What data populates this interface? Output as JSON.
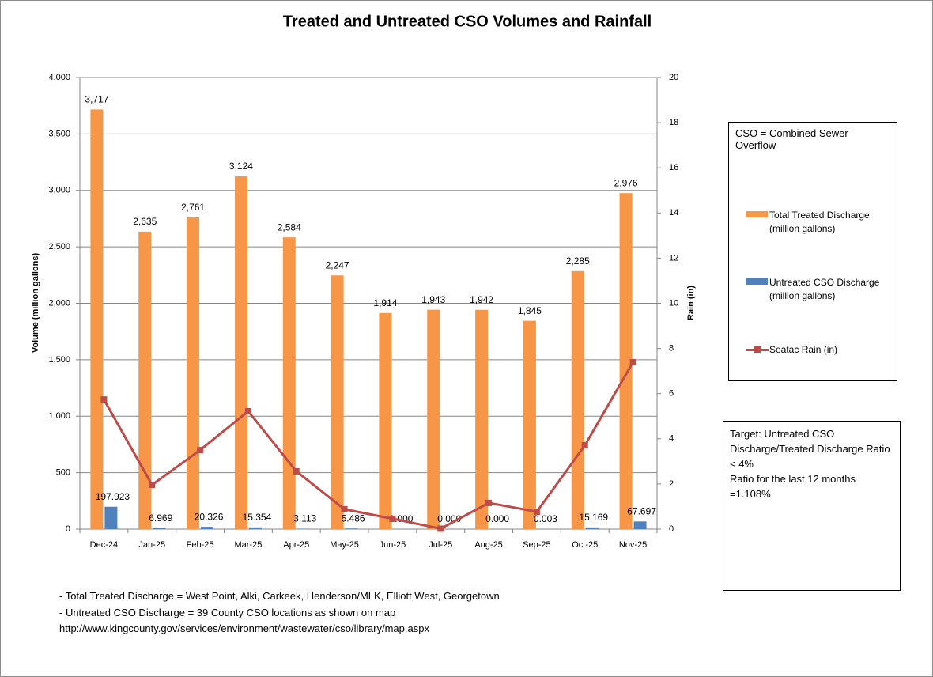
{
  "chart_data": {
    "type": "bar",
    "title": "Treated and Untreated CSO Volumes and Rainfall",
    "y_label": "Volume (million gallons)",
    "y2_label": "Rain (in)",
    "categories": [
      "Dec-24",
      "Jan-25",
      "Feb-25",
      "Mar-25",
      "Apr-25",
      "May-25",
      "Jun-25",
      "Jul-25",
      "Aug-25",
      "Sep-25",
      "Oct-25",
      "Nov-25"
    ],
    "series": [
      {
        "name": "Total Treated Discharge (million gallons)",
        "type": "bar",
        "color": "#f79646",
        "values": [
          3717,
          2635,
          2761,
          3124,
          2584,
          2247,
          1914,
          1943,
          1942,
          1845,
          2285,
          2976
        ],
        "value_labels": [
          "3,717",
          "2,635",
          "2,761",
          "3,124",
          "2,584",
          "2,247",
          "1,914",
          "1,943",
          "1,942",
          "1,845",
          "2,285",
          "2,976"
        ]
      },
      {
        "name": "Untreated CSO Discharge (million gallons)",
        "type": "bar",
        "color": "#4f81bd",
        "values": [
          197.923,
          6.969,
          20.326,
          15.354,
          3.113,
          5.486,
          0,
          0,
          0,
          0.003,
          15.169,
          67.697
        ],
        "value_labels": [
          "197.923",
          "6.969",
          "20.326",
          "15.354",
          "3.113",
          "5.486",
          "0.000",
          "0.000",
          "0.000",
          "0.003",
          "15.169",
          "67.697"
        ]
      },
      {
        "name": "Seatac Rain (in)",
        "type": "line",
        "axis": "y2",
        "color": "#be4b48",
        "values": [
          5.74,
          1.96,
          3.5,
          5.22,
          2.56,
          0.88,
          0.46,
          0.02,
          1.16,
          0.77,
          3.71,
          7.39
        ]
      }
    ],
    "ylim": [
      0,
      4000
    ],
    "yticks": [
      0,
      500,
      {
        "value": 1000,
        "label": "1,000"
      },
      {
        "value": 1500,
        "label": "1,500"
      },
      {
        "value": 2000,
        "label": "2,000"
      },
      {
        "value": 2500,
        "label": "2,500"
      },
      {
        "value": 3000,
        "label": "3,000"
      },
      {
        "value": 3500,
        "label": "3,500"
      },
      {
        "value": 4000,
        "label": "4,000"
      }
    ],
    "y2lim": [
      0,
      20
    ],
    "y2ticks": [
      0,
      2,
      4,
      6,
      8,
      10,
      12,
      14,
      16,
      18,
      20
    ],
    "grid": true,
    "legend_position": "right",
    "legend_note": "CSO = Combined Sewer Overflow",
    "target_note": [
      "Target: Untreated CSO Discharge/Treated Discharge Ratio < 4%",
      "Ratio for the last 12 months =1.108%"
    ],
    "footnotes": [
      "- Total Treated Discharge = West Point, Alki, Carkeek, Henderson/MLK, Elliott West, Georgetown",
      "- Untreated CSO Discharge = 39  County CSO locations as shown on map",
      "http://www.kingcounty.gov/services/environment/wastewater/cso/library/map.aspx"
    ]
  }
}
